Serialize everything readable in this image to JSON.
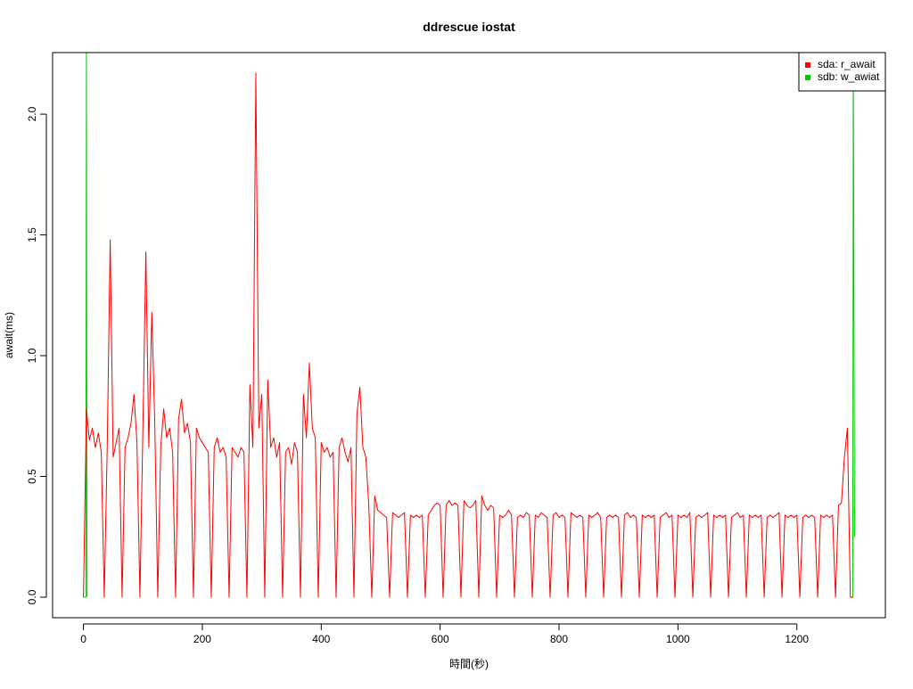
{
  "chart_data": {
    "type": "line",
    "title": "ddrescue iostat",
    "x_label": "時間(秒)",
    "y_label": "await(ms)",
    "xlim": [
      -51.88,
      1348.88
    ],
    "ylim": [
      -0.085,
      2.255
    ],
    "xticks": [
      0,
      200,
      400,
      600,
      800,
      1000,
      1200
    ],
    "yticks": [
      {
        "value": 0,
        "label": "0.0"
      },
      {
        "value": 0.5,
        "label": "0.5"
      },
      {
        "value": 1,
        "label": "1.0"
      },
      {
        "value": 1.5,
        "label": "1.5"
      },
      {
        "value": 2,
        "label": "2.0"
      }
    ],
    "legend": "top-right",
    "series": [
      {
        "name": "sda: r_await",
        "color": "#ff0000",
        "x": [
          0,
          5,
          10,
          15,
          20,
          25,
          30,
          35,
          40,
          45,
          50,
          55,
          60,
          65,
          70,
          75,
          80,
          85,
          90,
          95,
          100,
          105,
          110,
          115,
          120,
          125,
          130,
          135,
          140,
          145,
          150,
          155,
          160,
          165,
          170,
          175,
          180,
          185,
          190,
          195,
          200,
          205,
          210,
          215,
          220,
          225,
          230,
          235,
          240,
          245,
          250,
          255,
          260,
          265,
          270,
          275,
          280,
          285,
          290,
          295,
          300,
          305,
          310,
          315,
          320,
          325,
          330,
          335,
          340,
          345,
          350,
          355,
          360,
          365,
          370,
          375,
          380,
          385,
          390,
          395,
          400,
          405,
          410,
          415,
          420,
          425,
          430,
          435,
          440,
          445,
          450,
          455,
          460,
          465,
          470,
          475,
          480,
          485,
          490,
          495,
          500,
          505,
          510,
          515,
          520,
          525,
          530,
          535,
          540,
          545,
          550,
          555,
          560,
          565,
          570,
          575,
          580,
          585,
          590,
          595,
          600,
          605,
          610,
          615,
          620,
          625,
          630,
          635,
          640,
          645,
          650,
          655,
          660,
          665,
          670,
          675,
          680,
          685,
          690,
          695,
          700,
          705,
          710,
          715,
          720,
          725,
          730,
          735,
          740,
          745,
          750,
          755,
          760,
          765,
          770,
          775,
          780,
          785,
          790,
          795,
          800,
          805,
          810,
          815,
          820,
          825,
          830,
          835,
          840,
          845,
          850,
          855,
          860,
          865,
          870,
          875,
          880,
          885,
          890,
          895,
          900,
          905,
          910,
          915,
          920,
          925,
          930,
          935,
          940,
          945,
          950,
          955,
          960,
          965,
          970,
          975,
          980,
          985,
          990,
          995,
          1000,
          1005,
          1010,
          1015,
          1020,
          1025,
          1030,
          1035,
          1040,
          1045,
          1050,
          1055,
          1060,
          1065,
          1070,
          1075,
          1080,
          1085,
          1090,
          1095,
          1100,
          1105,
          1110,
          1115,
          1120,
          1125,
          1130,
          1135,
          1140,
          1145,
          1150,
          1155,
          1160,
          1165,
          1170,
          1175,
          1180,
          1185,
          1190,
          1195,
          1200,
          1205,
          1210,
          1215,
          1220,
          1225,
          1230,
          1235,
          1240,
          1245,
          1250,
          1255,
          1260,
          1265,
          1270,
          1275,
          1280,
          1285,
          1290,
          1295
        ],
        "values": [
          0,
          0.78,
          0.65,
          0.7,
          0.62,
          0.68,
          0.6,
          0,
          0.62,
          1.48,
          0.58,
          0.64,
          0.7,
          0,
          0.62,
          0.66,
          0.72,
          0.84,
          0.64,
          0,
          0.7,
          1.43,
          0.62,
          1.18,
          0.72,
          0,
          0.62,
          0.78,
          0.66,
          0.7,
          0.6,
          0,
          0.74,
          0.82,
          0.68,
          0.72,
          0.64,
          0,
          0.7,
          0.66,
          0.64,
          0.62,
          0.6,
          0,
          0.62,
          0.66,
          0.6,
          0.62,
          0.58,
          0,
          0.62,
          0.6,
          0.58,
          0.62,
          0.6,
          0,
          0.88,
          0.62,
          2.17,
          0.7,
          0.84,
          0,
          0.9,
          0.62,
          0.66,
          0.58,
          0.64,
          0,
          0.6,
          0.62,
          0.55,
          0.64,
          0.6,
          0,
          0.84,
          0.66,
          0.97,
          0.7,
          0.66,
          0,
          0.64,
          0.6,
          0.62,
          0.58,
          0.6,
          0,
          0.62,
          0.66,
          0.6,
          0.56,
          0.62,
          0,
          0.76,
          0.87,
          0.62,
          0.58,
          0.38,
          0,
          0.42,
          0.36,
          0.35,
          0.34,
          0.33,
          0,
          0.35,
          0.34,
          0.33,
          0.34,
          0.35,
          0,
          0.34,
          0.33,
          0.34,
          0.33,
          0.34,
          0,
          0.34,
          0.36,
          0.38,
          0.39,
          0.38,
          0,
          0.38,
          0.4,
          0.38,
          0.39,
          0.38,
          0,
          0.4,
          0.38,
          0.37,
          0.38,
          0.4,
          0,
          0.42,
          0.38,
          0.36,
          0.38,
          0.37,
          0,
          0.34,
          0.33,
          0.34,
          0.36,
          0.34,
          0,
          0.33,
          0.34,
          0.33,
          0.35,
          0.34,
          0,
          0.34,
          0.33,
          0.35,
          0.34,
          0.33,
          0,
          0.34,
          0.35,
          0.33,
          0.34,
          0.33,
          0,
          0.35,
          0.34,
          0.33,
          0.34,
          0.33,
          0,
          0.34,
          0.33,
          0.34,
          0.35,
          0.33,
          0,
          0.33,
          0.34,
          0.33,
          0.34,
          0.33,
          0,
          0.34,
          0.35,
          0.33,
          0.34,
          0.33,
          0,
          0.34,
          0.33,
          0.34,
          0.33,
          0.34,
          0,
          0.33,
          0.34,
          0.35,
          0.33,
          0.34,
          0,
          0.34,
          0.33,
          0.34,
          0.33,
          0.35,
          0,
          0.33,
          0.34,
          0.33,
          0.34,
          0.35,
          0,
          0.34,
          0.33,
          0.34,
          0.33,
          0.34,
          0,
          0.33,
          0.34,
          0.35,
          0.33,
          0.34,
          0,
          0.34,
          0.33,
          0.34,
          0.33,
          0.34,
          0,
          0.33,
          0.34,
          0.33,
          0.34,
          0.35,
          0,
          0.34,
          0.33,
          0.34,
          0.33,
          0.34,
          0,
          0.33,
          0.34,
          0.33,
          0.34,
          0.33,
          0,
          0.34,
          0.33,
          0.34,
          0.33,
          0.34,
          0,
          0.38,
          0.39,
          0.58,
          0.7,
          0,
          0
        ]
      },
      {
        "name": "sdb: w_awiat",
        "color": "#00cc00",
        "x": [
          0,
          4,
          5,
          6,
          7,
          1290,
          1294,
          1295,
          1297
        ],
        "values": [
          0,
          0,
          2.3,
          0,
          null,
          0,
          0,
          2.3,
          0.25
        ]
      }
    ]
  }
}
